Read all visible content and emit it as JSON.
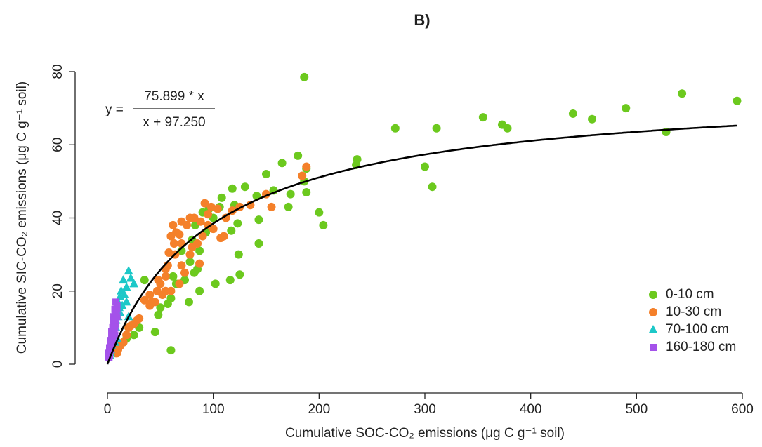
{
  "chart_data": {
    "type": "scatter",
    "title": "B)",
    "x_label": "Cumulative SOC-CO₂ emissions  (μg C g⁻¹ soil)",
    "y_label": "Cumulative SIC-CO₂ emissions  (μg C g⁻¹ soil)",
    "xlim": [
      0,
      600
    ],
    "ylim": [
      0,
      80
    ],
    "xticks": [
      0,
      100,
      200,
      300,
      400,
      500,
      600
    ],
    "yticks": [
      0,
      20,
      40,
      60,
      80
    ],
    "legend": "bottom-right",
    "fit": {
      "a": 75.899,
      "b": 97.25,
      "lhs": "y =",
      "numerator": "75.899 * x",
      "denominator": "x + 97.250",
      "color": "#000000"
    },
    "series": [
      {
        "name": "0-10 cm",
        "color": "#6cc91e",
        "marker": "circle",
        "x": [
          186,
          595,
          543,
          490,
          440,
          458,
          355,
          373,
          378,
          272,
          311,
          528,
          300,
          307,
          235,
          236,
          180,
          188,
          165,
          150,
          186,
          188,
          200,
          204,
          173,
          171,
          157,
          141,
          130,
          118,
          120,
          108,
          106,
          96,
          90,
          117,
          123,
          143,
          143,
          124,
          125,
          116,
          102,
          87,
          77,
          60,
          83,
          80,
          87,
          78,
          85,
          82,
          73,
          65,
          60,
          57,
          50,
          48,
          45,
          35,
          30,
          25,
          20,
          18,
          15,
          10,
          100,
          93,
          70,
          62
        ],
        "y": [
          78.5,
          72,
          74,
          70,
          68.5,
          67,
          67.5,
          65.5,
          64.5,
          64.5,
          64.5,
          63.5,
          54,
          48.5,
          54.5,
          56,
          57,
          53.5,
          55,
          52,
          50,
          47,
          41.5,
          38,
          46.5,
          43,
          47.5,
          46,
          48.5,
          48,
          43.5,
          45.5,
          43,
          42.5,
          41.5,
          36.5,
          38.5,
          39.5,
          33,
          30,
          24.5,
          23,
          22,
          20,
          17,
          3.8,
          38,
          34,
          31,
          28,
          26,
          25,
          23,
          22,
          18,
          16.5,
          15.5,
          13.5,
          8.8,
          23,
          10,
          8,
          10,
          7,
          6,
          5,
          40,
          36,
          31,
          24
        ]
      },
      {
        "name": "10-30 cm",
        "color": "#f4802a",
        "marker": "circle",
        "x": [
          184,
          188,
          155,
          150,
          135,
          125,
          118,
          112,
          107,
          104,
          98,
          95,
          92,
          90,
          87,
          85,
          82,
          78,
          75,
          70,
          68,
          65,
          60,
          62,
          58,
          57,
          55,
          64,
          70,
          73,
          68,
          60,
          55,
          52,
          47,
          45,
          42,
          40,
          35,
          30,
          28,
          25,
          22,
          20,
          18,
          15,
          12,
          10,
          9,
          8,
          50,
          55,
          63,
          78,
          80,
          95,
          100,
          110,
          88,
          70,
          48,
          40
        ],
        "y": [
          51.5,
          54,
          43,
          46.5,
          43.5,
          43,
          42,
          40,
          34.5,
          42.5,
          43,
          41,
          44,
          35,
          27.5,
          33,
          40,
          40,
          38,
          39,
          35.5,
          36,
          35,
          38,
          30.5,
          27,
          26,
          30,
          27,
          25,
          22,
          20,
          20,
          19,
          20,
          17,
          17,
          16,
          17.5,
          12.5,
          12,
          11,
          10.5,
          10,
          8,
          6,
          5,
          4,
          3,
          3,
          22,
          24,
          33,
          30,
          32,
          38,
          37,
          35,
          39,
          33,
          23,
          19
        ]
      },
      {
        "name": "70-100 cm",
        "color": "#1cc8c8",
        "marker": "triangle",
        "x": [
          20,
          22,
          15,
          18,
          25,
          13,
          16,
          12,
          10,
          14,
          11,
          9,
          10,
          8,
          7,
          6,
          5,
          6,
          5,
          4,
          4,
          3,
          3,
          2,
          8,
          12,
          18,
          20,
          9,
          7
        ],
        "y": [
          25.5,
          23.5,
          23,
          21,
          22,
          20,
          19,
          18.5,
          17,
          16,
          15.5,
          14,
          13,
          12,
          11,
          10,
          9,
          8,
          7,
          6,
          5,
          4,
          3,
          2.5,
          10,
          14,
          17,
          13,
          7,
          6
        ]
      },
      {
        "name": "160-180 cm",
        "color": "#a452ea",
        "marker": "square",
        "x": [
          8,
          9,
          7,
          8,
          6,
          7,
          6,
          5,
          6,
          4,
          5,
          4,
          3,
          4,
          3,
          2,
          3,
          2,
          1,
          2,
          1,
          1.5,
          9,
          8,
          7,
          5,
          6,
          9,
          7,
          4
        ],
        "y": [
          17,
          16,
          15,
          14,
          13,
          12,
          11,
          10,
          9.5,
          9,
          8,
          7,
          6.5,
          6,
          5,
          4.5,
          4,
          3.5,
          3,
          2.5,
          2,
          1.8,
          13,
          11,
          10,
          7,
          12,
          15,
          8,
          5.5
        ]
      }
    ]
  }
}
